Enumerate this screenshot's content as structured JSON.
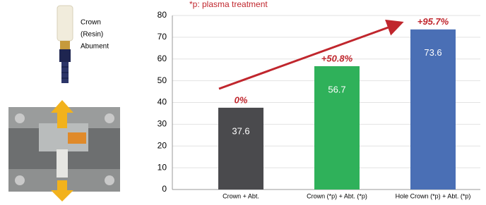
{
  "labels": [
    "Crown",
    "(Resin)",
    "Abument"
  ],
  "chart_data": {
    "type": "bar",
    "subtitle": "*p: plasma treatment",
    "categories": [
      "Crown + Abt.",
      "Crown (*p) + Abt. (*p)",
      "Hole Crown (*p) + Abt. (*p)"
    ],
    "values": [
      37.6,
      56.7,
      73.6
    ],
    "colors": [
      "#4a4a4d",
      "#2fb15a",
      "#4a6fb5"
    ],
    "annotations": [
      "0%",
      "+50.8%",
      "+95.7%"
    ],
    "ylim": [
      0,
      80
    ],
    "yticks": [
      0,
      10,
      20,
      30,
      40,
      50,
      60,
      70,
      80
    ],
    "grid": true
  }
}
